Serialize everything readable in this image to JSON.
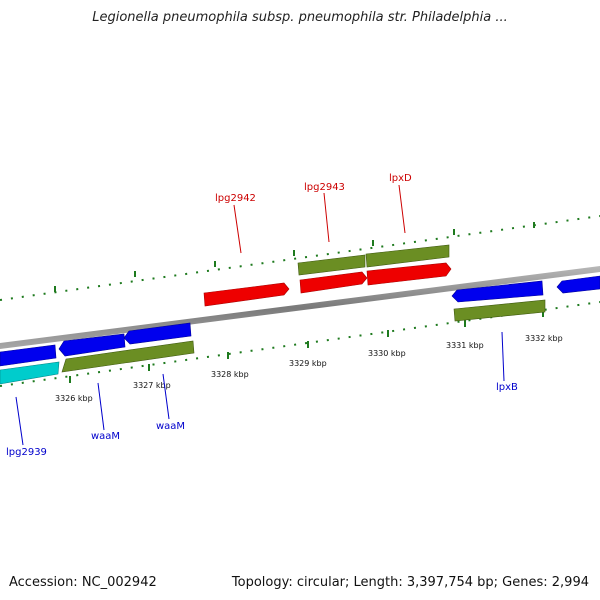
{
  "title": "Legionella pneumophila subsp. pneumophila str. Philadelphia ...",
  "footer": {
    "accession": "Accession: NC_002942",
    "topology": "Topology: circular; Length: 3,397,754 bp; Genes: 2,994"
  },
  "colors": {
    "backbone": "#8a8a8a",
    "gene_red": "#ee0000",
    "gene_blue": "#0000ee",
    "gene_green": "#6b8e23",
    "gene_cyan": "#00cccc",
    "tick_green": "#1e7a1e",
    "label_red": "#cc0000",
    "label_blue": "#0000cc"
  },
  "scale": {
    "unit": "kbp",
    "ticks": [
      {
        "value": 3326,
        "label": "3326 kbp"
      },
      {
        "value": 3327,
        "label": "3327 kbp"
      },
      {
        "value": 3328,
        "label": "3328 kbp"
      },
      {
        "value": 3329,
        "label": "3329 kbp"
      },
      {
        "value": 3330,
        "label": "3330 kbp"
      },
      {
        "value": 3331,
        "label": "3331 kbp"
      },
      {
        "value": 3332,
        "label": "3332 kbp"
      }
    ]
  },
  "gene_labels": {
    "lpg2942": "lpg2942",
    "lpg2943": "lpg2943",
    "lpxD": "lpxD",
    "lpxB": "lpxB",
    "waaM_1": "waaM",
    "waaM_2": "waaM",
    "lpg2939": "lpg2939"
  }
}
